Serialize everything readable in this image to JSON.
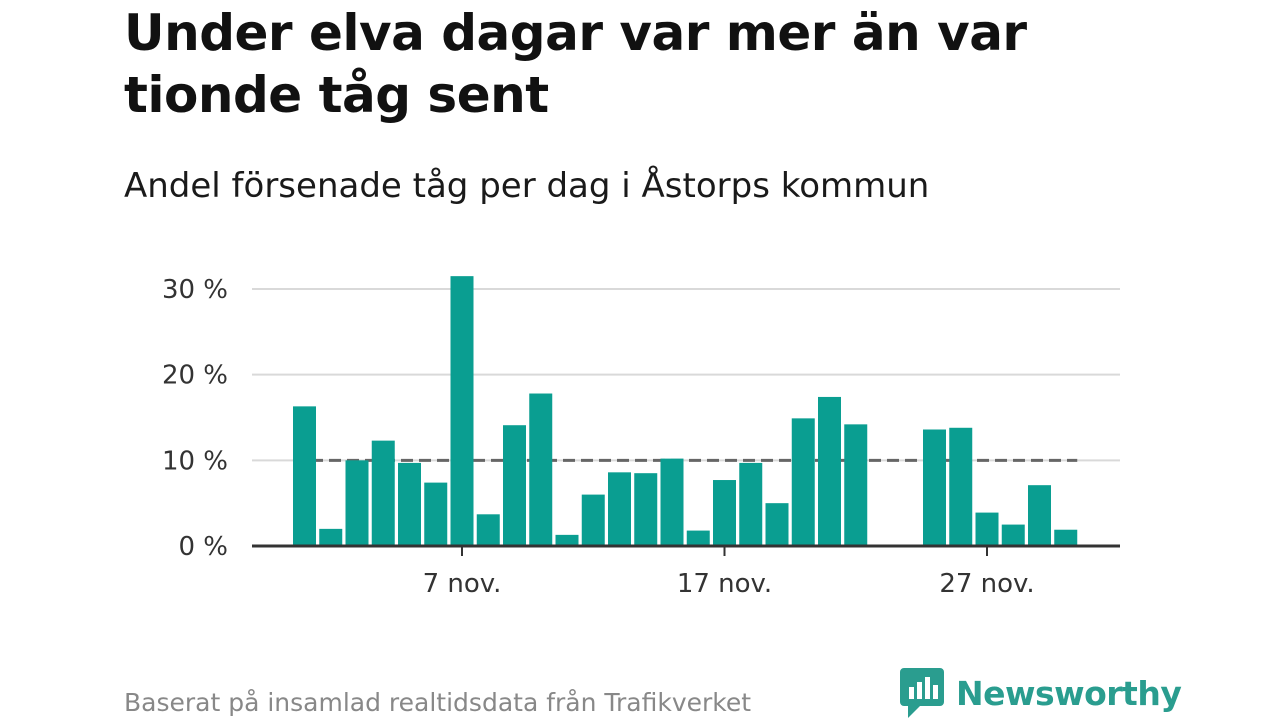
{
  "header": {
    "title": "Under elva dagar var mer än var tionde tåg sent",
    "subtitle": "Andel försenade tåg per dag i Åstorps kommun"
  },
  "footer": {
    "source": "Baserat på insamlad realtidsdata från Trafikverket",
    "brand": "Newsworthy"
  },
  "colors": {
    "bar": "#0a9e91",
    "reference_line": "#666666",
    "grid": "#d9d9d9",
    "axis": "#333333",
    "brand": "#2a9d8f"
  },
  "chart_data": {
    "type": "bar",
    "x_start_day": 1,
    "x": [
      1,
      2,
      3,
      4,
      5,
      6,
      7,
      8,
      9,
      10,
      11,
      12,
      13,
      14,
      15,
      16,
      17,
      18,
      19,
      20,
      21,
      22,
      23,
      24,
      25,
      26,
      27,
      28,
      29,
      30
    ],
    "values": [
      16.3,
      2.0,
      10.0,
      12.3,
      9.7,
      7.4,
      31.5,
      3.7,
      14.1,
      17.8,
      1.3,
      6.0,
      8.6,
      8.5,
      10.2,
      1.8,
      7.7,
      9.7,
      5.0,
      14.9,
      17.4,
      14.2,
      null,
      null,
      13.6,
      13.8,
      3.9,
      2.5,
      7.1,
      1.9
    ],
    "reference_line": 10,
    "ylim": [
      0,
      30
    ],
    "yticks": [
      0,
      10,
      20,
      30
    ],
    "ytick_labels": [
      "0 %",
      "10 %",
      "20 %",
      "30 %"
    ],
    "xticks": [
      7,
      17,
      27
    ],
    "xtick_labels": [
      "7 nov.",
      "17 nov.",
      "27 nov."
    ],
    "xlabel": "",
    "ylabel": "",
    "grid": true,
    "legend": "none"
  }
}
